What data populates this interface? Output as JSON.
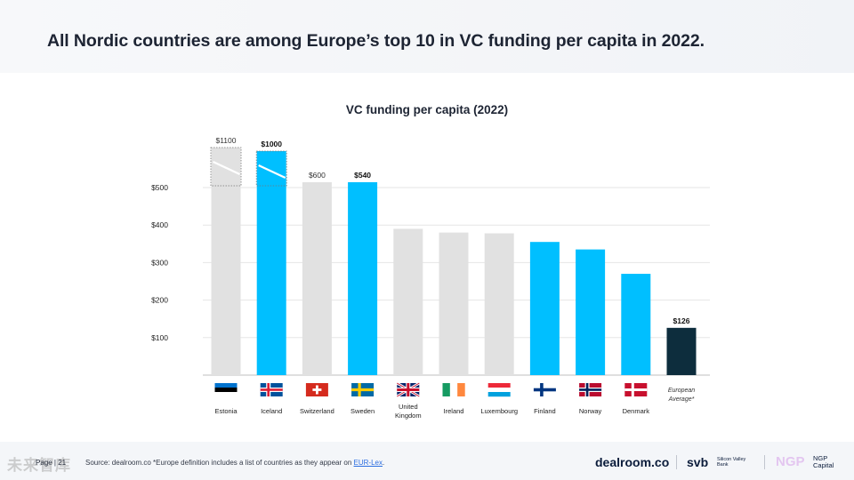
{
  "slide": {
    "headline": "All Nordic countries are among Europe’s top 10 in VC funding per capita in 2022.",
    "page": "Page | 21",
    "source_prefix": "Source: dealroom.co *Europe definition includes a list of countries as they appear on",
    "source_link": "EUR-Lex",
    "source_suffix": ".",
    "watermark": "未来智库",
    "logos": {
      "dealroom": "dealroom.co",
      "svb": "svb",
      "svb_sub": "Silicon Valley Bank",
      "ngp": "NGP",
      "ngp_sub": "NGP Capital"
    }
  },
  "colors": {
    "nordic": "#00bfff",
    "other": "#e1e1e1",
    "average": "#0d2d3d",
    "grid": "#e6e6e6"
  },
  "chart_data": {
    "type": "bar",
    "title": "VC funding per capita (2022)",
    "categories": [
      "Estonia",
      "Iceland",
      "Switzerland",
      "Sweden",
      "United Kingdom",
      "Ireland",
      "Luxembourg",
      "Finland",
      "Norway",
      "Denmark",
      "European Average*"
    ],
    "values": [
      1100,
      1000,
      600,
      540,
      390,
      380,
      378,
      355,
      335,
      270,
      126
    ],
    "data_labels": [
      "$1100",
      "$1000",
      "$600",
      "$540",
      "",
      "",
      "",
      "",
      "",
      "",
      "$126"
    ],
    "group": [
      "other",
      "nordic",
      "other",
      "nordic",
      "other",
      "other",
      "other",
      "nordic",
      "nordic",
      "nordic",
      "average"
    ],
    "broken_axis": [
      true,
      true,
      false,
      false,
      false,
      false,
      false,
      false,
      false,
      false,
      false
    ],
    "flags": [
      "estonia-flag-icon",
      "iceland-flag-icon",
      "switzerland-flag-icon",
      "sweden-flag-icon",
      "united-kingdom-flag-icon",
      "ireland-flag-icon",
      "luxembourg-flag-icon",
      "finland-flag-icon",
      "norway-flag-icon",
      "denmark-flag-icon",
      ""
    ],
    "yticks": [
      100,
      200,
      300,
      400,
      500
    ],
    "ytick_labels": [
      "$100",
      "$200",
      "$300",
      "$400",
      "$500"
    ],
    "ylim": [
      0,
      500
    ],
    "xlabel": "",
    "ylabel": ""
  }
}
